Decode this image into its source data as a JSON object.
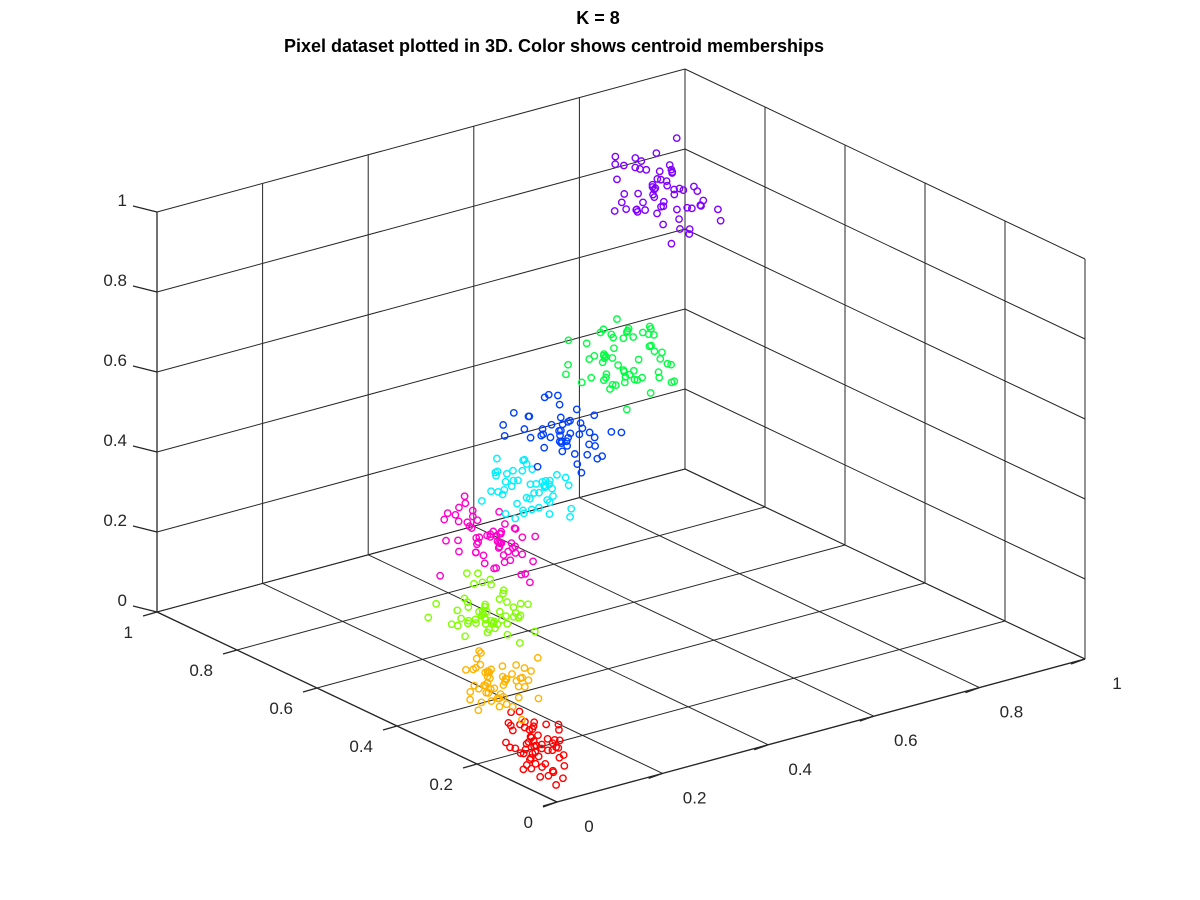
{
  "chart_data": {
    "type": "scatter3d",
    "title": "K = 8",
    "subtitle": "Pixel dataset plotted in 3D. Color shows centroid memberships",
    "xlim": [
      0,
      1
    ],
    "ylim": [
      0,
      1
    ],
    "zlim": [
      0,
      1
    ],
    "grid": true,
    "marker": "open-circle",
    "xticks": [
      0,
      0.2,
      0.4,
      0.6,
      0.8,
      1
    ],
    "yticks": [
      0,
      0.2,
      0.4,
      0.6,
      0.8,
      1
    ],
    "zticks": [
      0,
      0.2,
      0.4,
      0.6,
      0.8,
      1
    ],
    "xtick_labels": [
      "0",
      "0.2",
      "0.4",
      "0.6",
      "0.8",
      "1"
    ],
    "ytick_labels": [
      "0",
      "0.2",
      "0.4",
      "0.6",
      "0.8",
      "1"
    ],
    "ztick_labels": [
      "0",
      "0.2",
      "0.4",
      "0.6",
      "0.8",
      "1"
    ],
    "clusters": [
      {
        "color": "#ff0000",
        "center": [
          0.05,
          0.12,
          0.06
        ],
        "spread": [
          0.03,
          0.07,
          0.07
        ],
        "count": 60
      },
      {
        "color": "#ffb300",
        "center": [
          0.12,
          0.3,
          0.12
        ],
        "spread": [
          0.04,
          0.08,
          0.07
        ],
        "count": 55
      },
      {
        "color": "#80ff00",
        "center": [
          0.22,
          0.46,
          0.18
        ],
        "spread": [
          0.05,
          0.08,
          0.07
        ],
        "count": 55
      },
      {
        "color": "#ff00cc",
        "center": [
          0.3,
          0.55,
          0.27
        ],
        "spread": [
          0.06,
          0.09,
          0.08
        ],
        "count": 60
      },
      {
        "color": "#00f0ff",
        "center": [
          0.4,
          0.6,
          0.36
        ],
        "spread": [
          0.06,
          0.08,
          0.07
        ],
        "count": 50
      },
      {
        "color": "#0040ff",
        "center": [
          0.48,
          0.62,
          0.46
        ],
        "spread": [
          0.07,
          0.08,
          0.07
        ],
        "count": 50
      },
      {
        "color": "#00ff40",
        "center": [
          0.6,
          0.64,
          0.6
        ],
        "spread": [
          0.08,
          0.09,
          0.1
        ],
        "count": 60
      },
      {
        "color": "#8000ff",
        "center": [
          0.82,
          0.8,
          0.85
        ],
        "spread": [
          0.08,
          0.08,
          0.1
        ],
        "count": 60
      }
    ]
  }
}
